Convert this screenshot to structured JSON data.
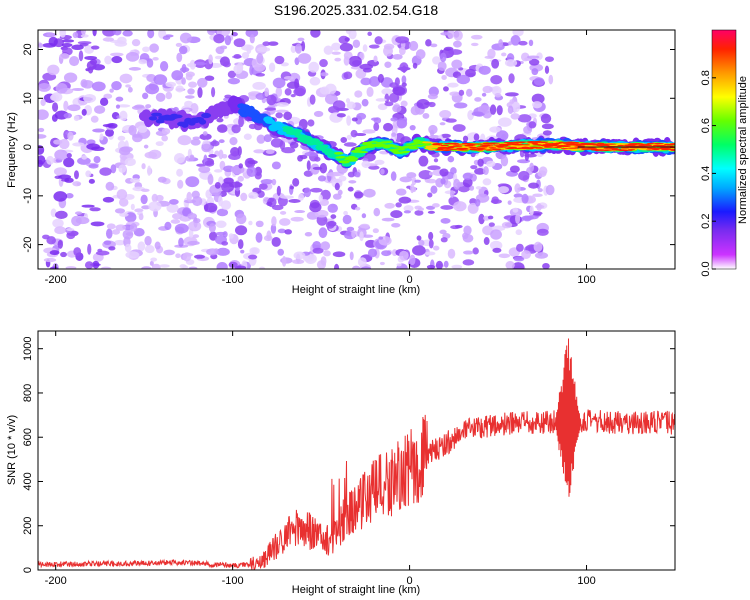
{
  "title": "S196.2025.331.02.54.G18",
  "chart_data": [
    {
      "type": "heatmap",
      "title": "S196.2025.331.02.54.G18",
      "xlabel": "Height of straight line (km)",
      "ylabel": "Frequency (Hz)",
      "xlim": [
        -210,
        150
      ],
      "ylim": [
        -25,
        24
      ],
      "xticks": [
        -200,
        -100,
        0,
        100
      ],
      "yticks": [
        -20,
        -10,
        0,
        10,
        20
      ],
      "colorbar": {
        "label": "Normalized spectral amplitude",
        "range": [
          0,
          1
        ],
        "ticks": [
          0.0,
          0.2,
          0.4,
          0.6,
          0.8
        ]
      },
      "ridge": [
        {
          "x": -140,
          "y": 6
        },
        {
          "x": -120,
          "y": 5
        },
        {
          "x": -100,
          "y": 9
        },
        {
          "x": -85,
          "y": 6
        },
        {
          "x": -75,
          "y": 4
        },
        {
          "x": -65,
          "y": 3
        },
        {
          "x": -55,
          "y": 1
        },
        {
          "x": -45,
          "y": -1
        },
        {
          "x": -35,
          "y": -3
        },
        {
          "x": -25,
          "y": 0
        },
        {
          "x": -15,
          "y": 1
        },
        {
          "x": -5,
          "y": -1
        },
        {
          "x": 5,
          "y": 1
        },
        {
          "x": 15,
          "y": 0
        },
        {
          "x": 40,
          "y": 0
        },
        {
          "x": 80,
          "y": 0.5
        },
        {
          "x": 100,
          "y": 0
        },
        {
          "x": 150,
          "y": 0
        }
      ]
    },
    {
      "type": "line",
      "xlabel": "Height of straight line (km)",
      "ylabel": "SNR (10 * v/v)",
      "xlim": [
        -210,
        150
      ],
      "ylim": [
        0,
        1080
      ],
      "xticks": [
        -200,
        -100,
        0,
        100
      ],
      "yticks": [
        0,
        200,
        400,
        600,
        800,
        1000
      ],
      "color": "#e83030",
      "trend": [
        {
          "x": -210,
          "y": 25
        },
        {
          "x": -150,
          "y": 30
        },
        {
          "x": -130,
          "y": 35
        },
        {
          "x": -100,
          "y": 20
        },
        {
          "x": -85,
          "y": 30
        },
        {
          "x": -75,
          "y": 110
        },
        {
          "x": -65,
          "y": 200
        },
        {
          "x": -55,
          "y": 170
        },
        {
          "x": -45,
          "y": 130
        },
        {
          "x": -35,
          "y": 250
        },
        {
          "x": -25,
          "y": 330
        },
        {
          "x": -15,
          "y": 380
        },
        {
          "x": 0,
          "y": 450
        },
        {
          "x": 10,
          "y": 520
        },
        {
          "x": 20,
          "y": 570
        },
        {
          "x": 30,
          "y": 620
        },
        {
          "x": 40,
          "y": 650
        },
        {
          "x": 60,
          "y": 660
        },
        {
          "x": 80,
          "y": 670
        },
        {
          "x": 100,
          "y": 670
        },
        {
          "x": 150,
          "y": 665
        }
      ],
      "burst": {
        "x_range": [
          82,
          97
        ],
        "peak": 1070,
        "min": 290
      }
    }
  ]
}
